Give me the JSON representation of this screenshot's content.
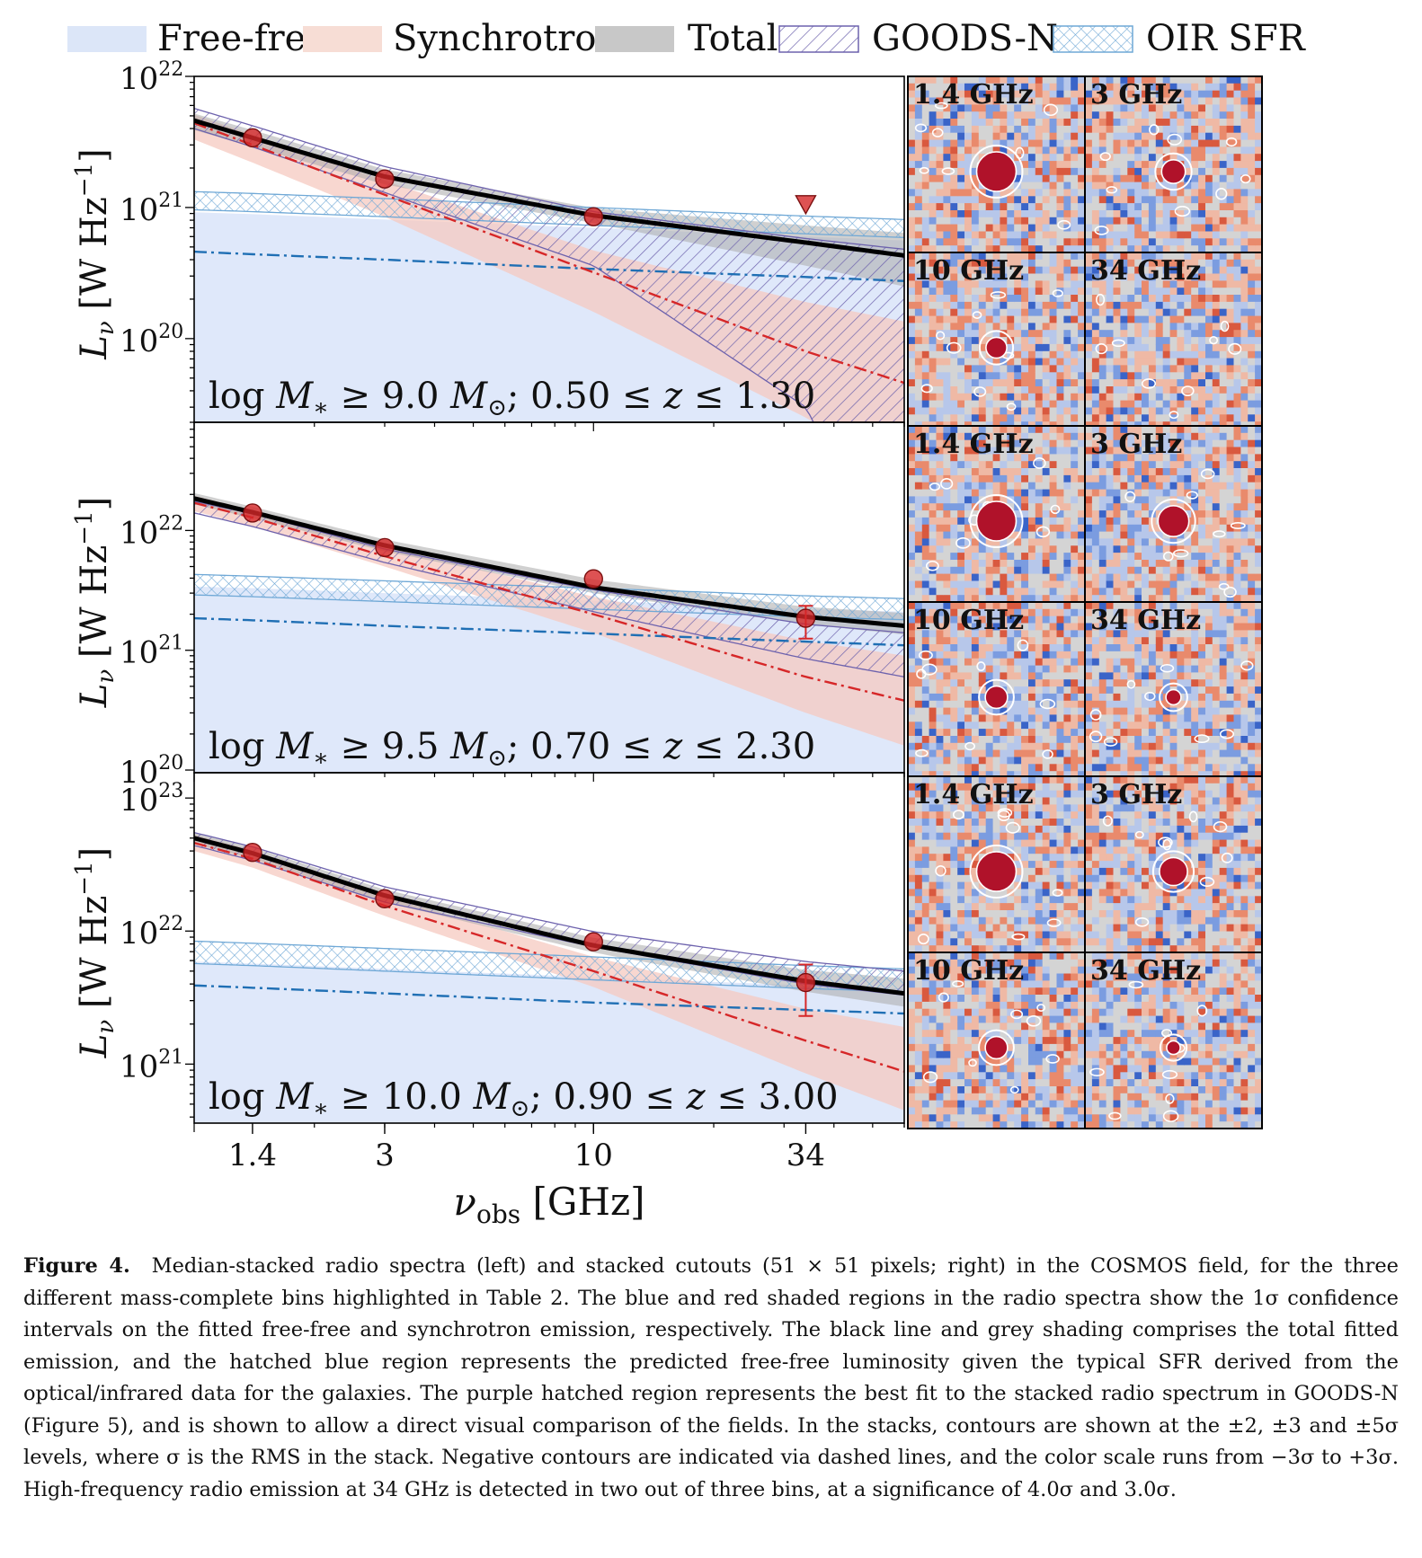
{
  "legend": [
    {
      "key": "free_free",
      "label": "Free-free",
      "color": "#dce6f8"
    },
    {
      "key": "synchrotron",
      "label": "Synchrotron",
      "color": "#f7ddd5"
    },
    {
      "key": "total",
      "label": "Total",
      "color": "#c8c8c8"
    },
    {
      "key": "goods_n",
      "label": "GOODS-N",
      "color": "#6d62ad"
    },
    {
      "key": "oir_sfr",
      "label": "OIR SFR",
      "color": "#6fa8d6"
    }
  ],
  "colors": {
    "free_free_fill": "#dfe8fa",
    "free_free_line": "#1f6fb4",
    "synchrotron_fill": "#f5c9c0",
    "synchrotron_line": "#d62728",
    "total_fill": "#a9a9a9",
    "goods_hatch": "#6d62ad",
    "oir_hatch": "#6fa8d6",
    "data_marker": "#d62728"
  },
  "xaxis": {
    "label_main": "ν",
    "label_sub": "obs",
    "label_unit": "[GHz]",
    "ticks": [
      {
        "v": 1.4,
        "label": "1.4"
      },
      {
        "v": 3,
        "label": "3"
      },
      {
        "v": 10,
        "label": "10"
      },
      {
        "v": 34,
        "label": "34"
      }
    ],
    "range": [
      1.0,
      60.0
    ],
    "scale": "log"
  },
  "yaxis_label": {
    "main": "L",
    "sub": "ν",
    "unit": "[W Hz",
    "exp": "−1",
    "close": "]"
  },
  "chart_data": [
    {
      "type": "line",
      "title": "log M* ≥ 9.0 M⊙;  0.50 ≤ z ≤ 1.30",
      "title_parts": {
        "pre": "log ",
        "M": "M",
        "star": "∗",
        "rel": " ≥ 9.0 ",
        "Msun": "M",
        "sun": "⊙",
        "z": "; 0.50 ≤ ",
        "zv": "z",
        "end": " ≤ 1.30"
      },
      "ylim": [
        2.3e+19,
        1e+22
      ],
      "scale": "log",
      "yticks": [
        {
          "exp": "22",
          "v": 1e+22
        },
        {
          "exp": "21",
          "v": 1e+21
        },
        {
          "exp": "20",
          "v": 1e+20
        }
      ],
      "data_points": [
        {
          "x": 1.4,
          "y": 3.4e+21
        },
        {
          "x": 3,
          "y": 1.65e+21
        },
        {
          "x": 10,
          "y": 8.5e+20
        }
      ],
      "upper_limits": [
        {
          "x": 34,
          "y": 1.05e+21
        }
      ],
      "total_fit": {
        "x": [
          1.0,
          1.4,
          3,
          10,
          34,
          60
        ],
        "y": [
          4.6e+21,
          3.4e+21,
          1.72e+21,
          8.7e+20,
          5.4e+20,
          4.3e+20
        ]
      },
      "total_band": {
        "lower": [
          3.9e+21,
          2.9e+21,
          1.5e+21,
          7.6e+20,
          3.6e+20,
          2.5e+20
        ],
        "upper": [
          5.2e+21,
          3.9e+21,
          1.95e+21,
          9.9e+20,
          7.3e+20,
          6.4e+20
        ]
      },
      "synchrotron_fit": {
        "y": [
          4.4e+21,
          3e+21,
          1.25e+21,
          3.2e+20,
          8e+19,
          4.6e+19
        ]
      },
      "synchrotron_band": {
        "lower": [
          3.3e+21,
          2.2e+21,
          8.5e+20,
          1.6e+20,
          2.5e+19,
          9e+18
        ],
        "upper": [
          5.1e+21,
          3.6e+21,
          1.6e+21,
          4.7e+20,
          1.9e+20,
          1.35e+20
        ]
      },
      "free_free_fit": {
        "y": [
          4.6e+20,
          4.4e+20,
          4e+20,
          3.4e+20,
          2.95e+20,
          2.75e+20
        ]
      },
      "free_free_band_upper": [
        9.2e+20,
        8.9e+20,
        8.1e+20,
        7e+20,
        6e+20,
        5.6e+20
      ],
      "oir_band": {
        "lower": [
          9.6e+20,
          9.3e+20,
          8.5e+20,
          7.3e+20,
          6.3e+20,
          5.9e+20
        ],
        "upper": [
          1.32e+21,
          1.28e+21,
          1.17e+21,
          1e+21,
          8.6e+20,
          8.1e+20
        ]
      },
      "goods_band": {
        "lower": [
          4e+21,
          2.9e+21,
          1.3e+21,
          3.6e+20,
          3e+19,
          1e+18
        ],
        "upper": [
          5.7e+21,
          4.2e+21,
          2.05e+21,
          9.3e+20,
          5.8e+20,
          4.8e+20
        ]
      }
    },
    {
      "type": "line",
      "title": "log M* ≥ 9.5 M⊙;  0.70 ≤ z ≤ 2.30",
      "title_parts": {
        "pre": "log ",
        "M": "M",
        "star": "∗",
        "rel": " ≥ 9.5 ",
        "Msun": "M",
        "sun": "⊙",
        "z": "; 0.70 ≤ ",
        "zv": "z",
        "end": " ≤ 2.30"
      },
      "ylim": [
        9.5e+19,
        8e+22
      ],
      "scale": "log",
      "yticks": [
        {
          "exp": "22",
          "v": 1e+22
        },
        {
          "exp": "21",
          "v": 1e+21
        },
        {
          "exp": "20",
          "v": 1e+20
        }
      ],
      "data_points": [
        {
          "x": 1.4,
          "y": 1.4e+22
        },
        {
          "x": 3,
          "y": 7.2e+21
        },
        {
          "x": 10,
          "y": 3.95e+21
        },
        {
          "x": 34,
          "y": 1.85e+21,
          "err_lo": 1.25e+21,
          "err_hi": 2.35e+21
        }
      ],
      "upper_limits": [],
      "total_fit": {
        "x": [
          1.0,
          1.4,
          3,
          10,
          34,
          60
        ],
        "y": [
          1.85e+22,
          1.42e+22,
          7.5e+21,
          3.35e+21,
          1.9e+21,
          1.6e+21
        ]
      },
      "total_band": {
        "lower": [
          1.65e+22,
          1.27e+22,
          6.7e+21,
          3e+21,
          1.65e+21,
          1.35e+21
        ],
        "upper": [
          2.05e+22,
          1.58e+22,
          8.4e+21,
          3.9e+21,
          2.3e+21,
          2.05e+21
        ]
      },
      "synchrotron_fit": {
        "y": [
          1.7e+22,
          1.28e+22,
          6.1e+21,
          2e+21,
          6e+20,
          3.8e+20
        ]
      },
      "synchrotron_band": {
        "lower": [
          1.45e+22,
          1.08e+22,
          5e+21,
          1.4e+21,
          3e+20,
          1.6e+20
        ],
        "upper": [
          1.95e+22,
          1.48e+22,
          7.3e+21,
          2.8e+21,
          1.2e+21,
          9e+20
        ]
      },
      "free_free_fit": {
        "y": [
          1.85e+21,
          1.78e+21,
          1.6e+21,
          1.38e+21,
          1.18e+21,
          1.1e+21
        ]
      },
      "free_free_band_upper": [
        3.4e+21,
        3.3e+21,
        3e+21,
        2.6e+21,
        2.2e+21,
        2.1e+21
      ],
      "oir_band": {
        "lower": [
          2.9e+21,
          2.8e+21,
          2.55e+21,
          2.2e+21,
          1.9e+21,
          1.8e+21
        ],
        "upper": [
          4.3e+21,
          4.15e+21,
          3.8e+21,
          3.3e+21,
          2.85e+21,
          2.7e+21
        ]
      },
      "goods_band": {
        "lower": [
          1.4e+22,
          1.08e+22,
          5.4e+21,
          2.1e+21,
          8.5e+20,
          6e+20
        ],
        "upper": [
          1.75e+22,
          1.38e+22,
          7e+21,
          3.2e+21,
          1.65e+21,
          1.4e+21
        ]
      }
    },
    {
      "type": "line",
      "title": "log M* ≥ 10.0 M⊙;  0.90 ≤ z ≤ 3.00",
      "title_parts": {
        "pre": "log ",
        "M": "M",
        "star": "∗",
        "rel": " ≥ 10.0 ",
        "Msun": "M",
        "sun": "⊙",
        "z": "; 0.90 ≤ ",
        "zv": "z",
        "end": " ≤ 3.00"
      },
      "ylim": [
        3.6e+20,
        1.55e+23
      ],
      "scale": "log",
      "yticks": [
        {
          "exp": "23",
          "v": 1e+23
        },
        {
          "exp": "22",
          "v": 1e+22
        },
        {
          "exp": "21",
          "v": 1e+21
        }
      ],
      "data_points": [
        {
          "x": 1.4,
          "y": 3.9e+22
        },
        {
          "x": 3,
          "y": 1.75e+22
        },
        {
          "x": 10,
          "y": 8.3e+21
        },
        {
          "x": 34,
          "y": 4.1e+21,
          "err_lo": 2.3e+21,
          "err_hi": 5.6e+21
        }
      ],
      "upper_limits": [],
      "total_fit": {
        "x": [
          1.0,
          1.4,
          3,
          10,
          34,
          60
        ],
        "y": [
          5e+22,
          3.85e+22,
          1.85e+22,
          7.8e+21,
          4.2e+21,
          3.4e+21
        ]
      },
      "total_band": {
        "lower": [
          4.5e+22,
          3.5e+22,
          1.65e+22,
          6.9e+21,
          3.5e+21,
          2.7e+21
        ],
        "upper": [
          5.5e+22,
          4.25e+22,
          2.05e+22,
          8.9e+21,
          5.1e+21,
          4.4e+21
        ]
      },
      "synchrotron_fit": {
        "y": [
          4.6e+22,
          3.5e+22,
          1.55e+22,
          5e+21,
          1.5e+21,
          8.8e+20
        ]
      },
      "synchrotron_band": {
        "lower": [
          4e+22,
          3e+22,
          1.3e+22,
          3.8e+21,
          8.5e+20,
          4.5e+20
        ],
        "upper": [
          5.3e+22,
          4.05e+22,
          1.82e+22,
          6.4e+21,
          2.6e+21,
          1.9e+21
        ]
      },
      "free_free_fit": {
        "y": [
          3.9e+21,
          3.75e+21,
          3.4e+21,
          2.9e+21,
          2.55e+21,
          2.4e+21
        ]
      },
      "free_free_band_upper": [
        5.9e+21,
        5.7e+21,
        5.2e+21,
        4.5e+21,
        3.9e+21,
        3.7e+21
      ],
      "oir_band": {
        "lower": [
          5.7e+21,
          5.5e+21,
          5e+21,
          4.3e+21,
          3.7e+21,
          3.5e+21
        ],
        "upper": [
          8.4e+21,
          8.1e+21,
          7.4e+21,
          6.4e+21,
          5.5e+21,
          5.2e+21
        ]
      },
      "goods_band": {
        "lower": [
          4.4e+22,
          3.4e+22,
          1.65e+22,
          7.6e+21,
          4e+21,
          3.3e+21
        ],
        "upper": [
          5.5e+22,
          4.3e+22,
          2.15e+22,
          9.9e+21,
          5.9e+21,
          5e+21
        ]
      }
    }
  ],
  "cutouts": [
    {
      "row": 0,
      "col": 0,
      "label": "1.4 GHz",
      "strength": 1.0
    },
    {
      "row": 0,
      "col": 1,
      "label": "3 GHz",
      "strength": 0.45
    },
    {
      "row": 0,
      "col": 2,
      "label": "10 GHz",
      "strength": 0.35
    },
    {
      "row": 0,
      "col": 3,
      "label": "34 GHz",
      "strength": 0.0
    },
    {
      "row": 1,
      "col": 0,
      "label": "1.4 GHz",
      "strength": 1.0
    },
    {
      "row": 1,
      "col": 1,
      "label": "3 GHz",
      "strength": 0.7
    },
    {
      "row": 1,
      "col": 2,
      "label": "10 GHz",
      "strength": 0.4
    },
    {
      "row": 1,
      "col": 3,
      "label": "34 GHz",
      "strength": 0.15
    },
    {
      "row": 2,
      "col": 0,
      "label": "1.4 GHz",
      "strength": 1.0
    },
    {
      "row": 2,
      "col": 1,
      "label": "3 GHz",
      "strength": 0.6
    },
    {
      "row": 2,
      "col": 2,
      "label": "10 GHz",
      "strength": 0.4
    },
    {
      "row": 2,
      "col": 3,
      "label": "34 GHz",
      "strength": 0.1
    }
  ],
  "caption": {
    "label": "Figure 4.",
    "text": "Median-stacked radio spectra (left) and stacked cutouts (51 × 51 pixels; right) in the COSMOS field, for the three different mass-complete bins highlighted in Table 2. The blue and red shaded regions in the radio spectra show the 1σ confidence intervals on the fitted free-free and synchrotron emission, respectively. The black line and grey shading comprises the total fitted emission, and the hatched blue region represents the predicted free-free luminosity given the typical SFR derived from the optical/infrared data for the galaxies. The purple hatched region represents the best fit to the stacked radio spectrum in GOODS-N (Figure 5), and is shown to allow a direct visual comparison of the fields. In the stacks, contours are shown at the ±2, ±3 and ±5σ levels, where σ is the RMS in the stack. Negative contours are indicated via dashed lines, and the color scale runs from −3σ to +3σ. High-frequency radio emission at 34 GHz is detected in two out of three bins, at a significance of 4.0σ and 3.0σ."
  }
}
